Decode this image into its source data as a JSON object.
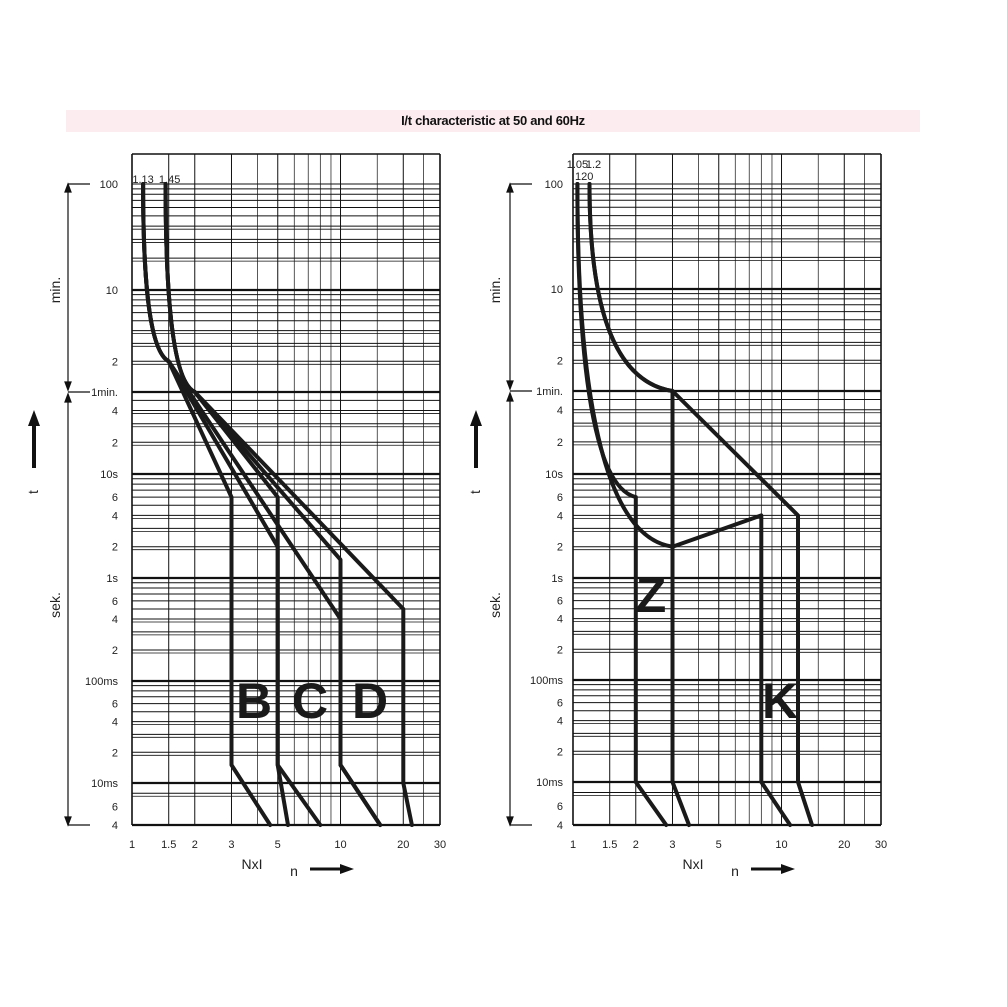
{
  "title": "I/t characteristic at 50 and 60Hz",
  "chart_data": [
    {
      "type": "line",
      "title": "",
      "xlabel": "NxI",
      "xlabel2": "n",
      "ylabel": "t",
      "x_scale": "log",
      "xlim": [
        1,
        30
      ],
      "x_ticks": [
        "1",
        "1.5",
        "2",
        "3",
        "5",
        "10",
        "20",
        "30"
      ],
      "y_unit_labels": {
        "minutes": "min.",
        "seconds": "sek."
      },
      "y_ticks": [
        "100",
        "10",
        "2",
        "1min.",
        "4",
        "2",
        "10s",
        "6",
        "4",
        "2",
        "1s",
        "6",
        "4",
        "2",
        "100ms",
        "6",
        "4",
        "2",
        "10ms",
        "6",
        "4"
      ],
      "top_markers": [
        "1.13",
        "1.45"
      ],
      "series": [
        {
          "name": "B",
          "lower_curve": [
            [
              1.13,
              "100 min"
            ],
            [
              1.5,
              "2 min"
            ],
            [
              3,
              "6 s"
            ],
            [
              3,
              "15 ms"
            ],
            [
              4.6,
              "4 ms"
            ]
          ],
          "upper_curve": [
            [
              1.45,
              "100 min"
            ],
            [
              2,
              "1 min"
            ],
            [
              5,
              "6 s"
            ],
            [
              5,
              "15 ms"
            ],
            [
              5.6,
              "4 ms"
            ]
          ]
        },
        {
          "name": "C",
          "lower_curve": [
            [
              1.13,
              "100 min"
            ],
            [
              1.5,
              "2 min"
            ],
            [
              5,
              "2 s"
            ],
            [
              5,
              "15 ms"
            ],
            [
              8,
              "4 ms"
            ]
          ],
          "upper_curve": [
            [
              1.45,
              "100 min"
            ],
            [
              2,
              "1 min"
            ],
            [
              10,
              "1.5 s"
            ],
            [
              10,
              "15 ms"
            ],
            [
              15.5,
              "4 ms"
            ]
          ]
        },
        {
          "name": "D",
          "lower_curve": [
            [
              1.13,
              "100 min"
            ],
            [
              1.5,
              "2 min"
            ],
            [
              10,
              "0.4 s"
            ],
            [
              10,
              "15 ms"
            ],
            [
              15.5,
              "4 ms"
            ]
          ],
          "upper_curve": [
            [
              1.45,
              "100 min"
            ],
            [
              2,
              "1 min"
            ],
            [
              20,
              "0.5 s"
            ],
            [
              20,
              "10 ms"
            ],
            [
              22,
              "4 ms"
            ]
          ]
        }
      ]
    },
    {
      "type": "line",
      "title": "",
      "xlabel": "NxI",
      "xlabel2": "n",
      "ylabel": "t",
      "x_scale": "log",
      "xlim": [
        1,
        30
      ],
      "x_ticks": [
        "1",
        "1.5",
        "2",
        "3",
        "5",
        "10",
        "20",
        "30"
      ],
      "y_unit_labels": {
        "minutes": "min.",
        "seconds": "sek."
      },
      "y_ticks": [
        "100",
        "10",
        "2",
        "1min.",
        "4",
        "2",
        "10s",
        "6",
        "4",
        "2",
        "1s",
        "6",
        "4",
        "2",
        "100ms",
        "6",
        "4",
        "2",
        "10ms",
        "6",
        "4"
      ],
      "top_markers": [
        "1.05",
        "1.2",
        "120"
      ],
      "series": [
        {
          "name": "Z",
          "lower_curve": [
            [
              1.05,
              "120 min"
            ],
            [
              2,
              "6 s"
            ],
            [
              2,
              "10 ms"
            ],
            [
              2.8,
              "4 ms"
            ]
          ],
          "upper_curve": [
            [
              1.2,
              "120 min"
            ],
            [
              3,
              "1 min"
            ],
            [
              3,
              "10 ms"
            ],
            [
              3.6,
              "4 ms"
            ]
          ]
        },
        {
          "name": "K",
          "lower_curve": [
            [
              1.05,
              "120 min"
            ],
            [
              3,
              "2 s"
            ],
            [
              8,
              "4 s"
            ],
            [
              8,
              "10 ms"
            ],
            [
              11,
              "4 ms"
            ]
          ],
          "upper_curve": [
            [
              1.2,
              "120 min"
            ],
            [
              3,
              "1 min"
            ],
            [
              12,
              "4 s"
            ],
            [
              12,
              "10 ms"
            ],
            [
              14,
              "4 ms"
            ]
          ]
        }
      ]
    }
  ]
}
